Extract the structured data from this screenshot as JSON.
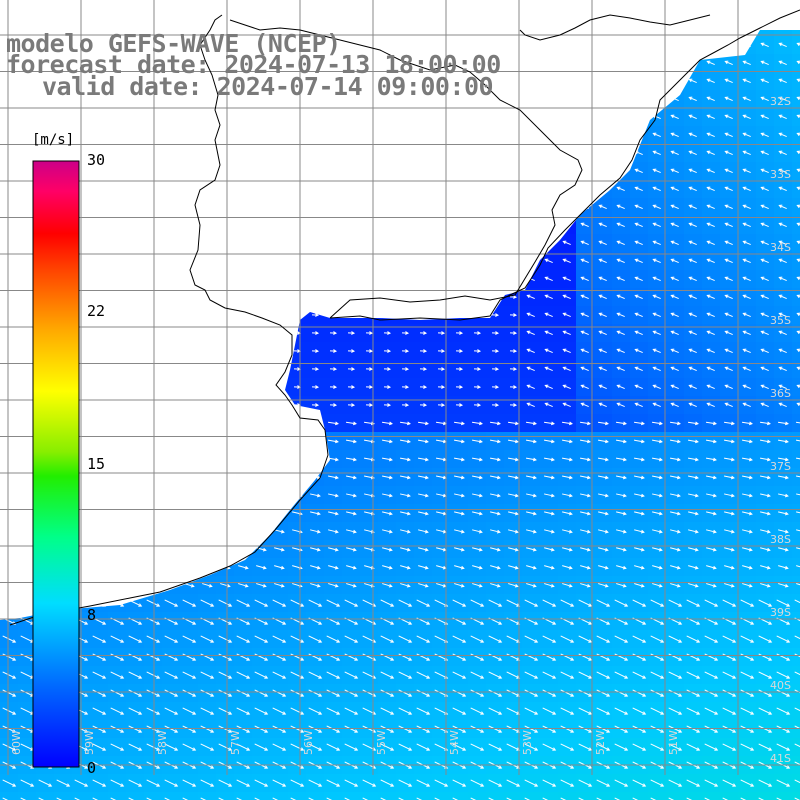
{
  "title": {
    "line1": "modelo GEFS-WAVE (NCEP)",
    "line2": "forecast date: 2024-07-13 18:00:00",
    "line3": "valid date: 2024-07-14 09:00:00"
  },
  "colorbar": {
    "unit": "[m/s]",
    "ticks": [
      "30",
      "22",
      "15",
      "8",
      "0"
    ],
    "tick_values": [
      30,
      22,
      15,
      8,
      0
    ],
    "colors": [
      "#0000ff",
      "#0066ff",
      "#00ccff",
      "#00ff99",
      "#33dd00",
      "#99ee00",
      "#ffff00",
      "#ffaa00",
      "#ff5500",
      "#ff0000",
      "#ff0066",
      "#cc0088"
    ]
  },
  "map": {
    "lat_labels": [
      "32S",
      "33S",
      "34S",
      "35S",
      "36S",
      "37S",
      "38S",
      "39S",
      "40S",
      "41S"
    ],
    "lon_labels": [
      "60W",
      "59W",
      "58W",
      "57W",
      "56W",
      "55W",
      "54W",
      "53W",
      "52W",
      "51W"
    ],
    "land_color": "#ffffff",
    "grid_color": "#888888",
    "arrow_color": "#ffffff"
  }
}
